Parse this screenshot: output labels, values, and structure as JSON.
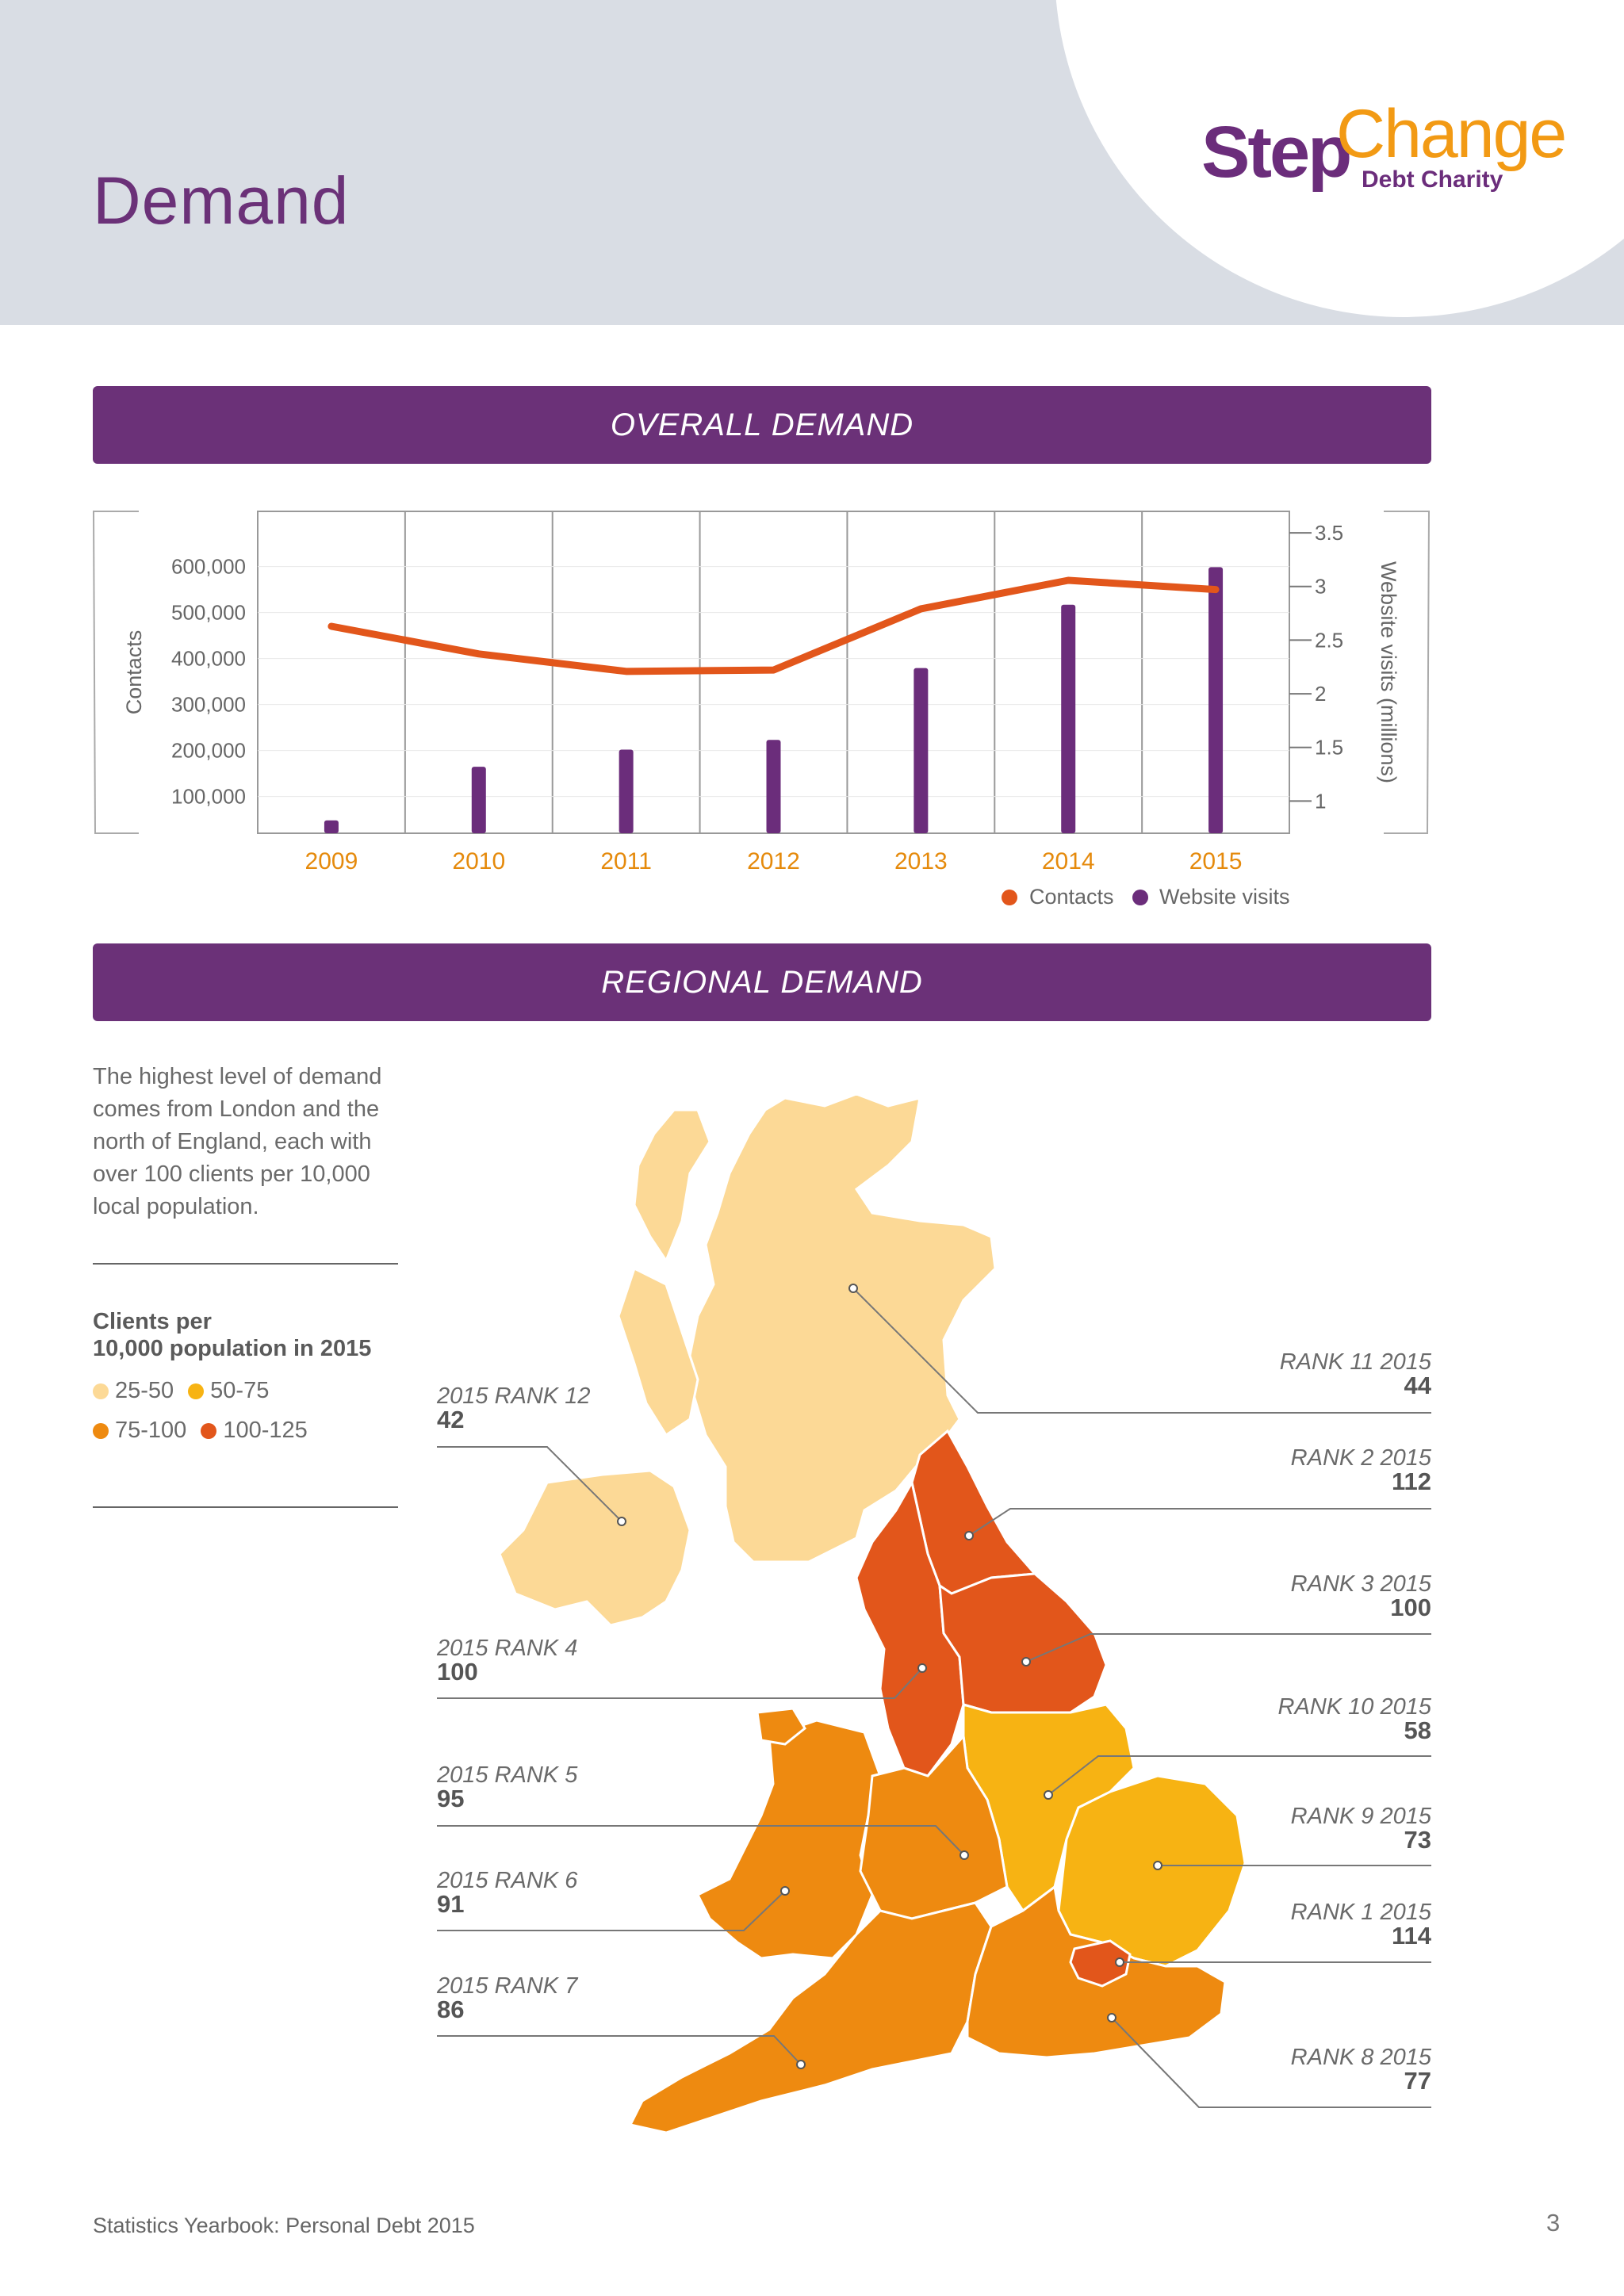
{
  "page": {
    "title": "Demand",
    "footer": "Statistics Yearbook: Personal Debt 2015",
    "page_number": "3"
  },
  "logo": {
    "step": "Step",
    "change": "Change",
    "sub": "Debt Charity"
  },
  "sections": {
    "overall": "OVERALL DEMAND",
    "regional": "REGIONAL DEMAND"
  },
  "colors": {
    "purple": "#6b3178",
    "contacts": "#e2561b",
    "website": "#6b2d7b",
    "band_25_50": "#fcd996",
    "band_50_75": "#f7b313",
    "band_75_100": "#ee8a10",
    "band_100_125": "#e2561b"
  },
  "chart_data": {
    "type": "bar",
    "categories": [
      "2009",
      "2010",
      "2011",
      "2012",
      "2013",
      "2014",
      "2015"
    ],
    "xlabel": "",
    "ylabel": "Contacts",
    "y2label": "Website visits (millions)",
    "yticks": [
      "100,000",
      "200,000",
      "300,000",
      "400,000",
      "500,000",
      "600,000"
    ],
    "y2ticks": [
      "1",
      "1.5",
      "2",
      "2.5",
      "3",
      "3.5"
    ],
    "ylim": [
      20000,
      720000
    ],
    "y2lim": [
      0.7,
      3.7
    ],
    "grid": true,
    "legend": "bottom-right",
    "series": [
      {
        "name": "Contacts",
        "type": "line",
        "axis": "left",
        "values": [
          470000,
          410000,
          372000,
          375000,
          508000,
          570000,
          550000
        ]
      },
      {
        "name": "Website visits",
        "type": "bar",
        "axis": "right",
        "values": [
          0.82,
          1.32,
          1.48,
          1.57,
          2.24,
          2.83,
          3.18
        ]
      }
    ]
  },
  "regional": {
    "intro": "The highest level of demand comes from London and the north of England, each with over 100 clients per 10,000 local population.",
    "legend_title_line1": "Clients per",
    "legend_title_line2": "10,000 population in 2015",
    "legend": [
      "25-50",
      "50-75",
      "75-100",
      "100-125"
    ],
    "callouts": [
      {
        "rank": "RANK 11 2015",
        "value": "44"
      },
      {
        "rank": "RANK 2 2015",
        "value": "112"
      },
      {
        "rank": "RANK 3 2015",
        "value": "100"
      },
      {
        "rank": "RANK 10 2015",
        "value": "58"
      },
      {
        "rank": "RANK 9 2015",
        "value": "73"
      },
      {
        "rank": "RANK 1 2015",
        "value": "114"
      },
      {
        "rank": "RANK 8 2015",
        "value": "77"
      },
      {
        "rank": "2015 RANK 12",
        "value": "42"
      },
      {
        "rank": "2015 RANK 4",
        "value": "100"
      },
      {
        "rank": "2015 RANK 5",
        "value": "95"
      },
      {
        "rank": "2015 RANK 6",
        "value": "91"
      },
      {
        "rank": "2015 RANK 7",
        "value": "86"
      }
    ]
  }
}
